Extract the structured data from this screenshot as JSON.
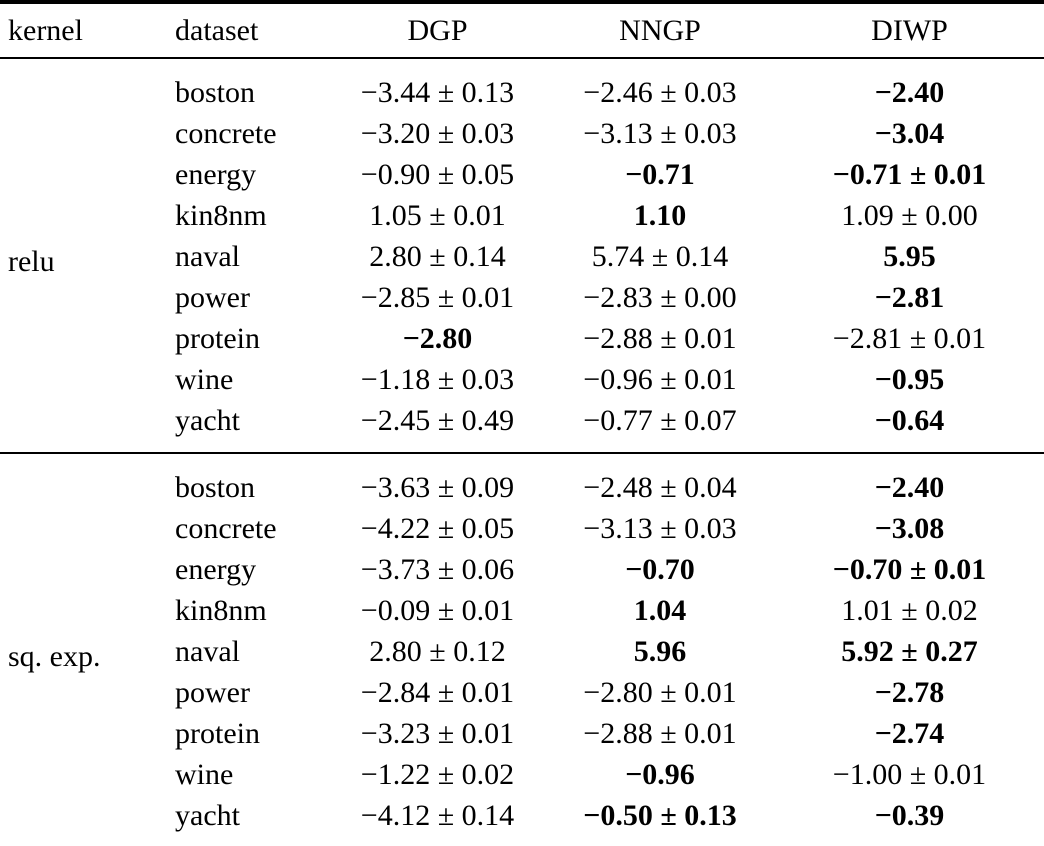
{
  "meta": {
    "background_color": "#ffffff",
    "text_color": "#000000",
    "rule_color": "#000000"
  },
  "table": {
    "columns": [
      {
        "key": "kernel",
        "label": "kernel"
      },
      {
        "key": "dataset",
        "label": "dataset"
      },
      {
        "key": "dgp",
        "label": "DGP"
      },
      {
        "key": "nngp",
        "label": "NNGP"
      },
      {
        "key": "diwp",
        "label": "DIWP"
      }
    ],
    "groups": [
      {
        "kernel": "relu",
        "rows": [
          {
            "dataset": "boston",
            "values": [
              {
                "text": "−3.44 ± 0.13",
                "bold": false
              },
              {
                "text": "−2.46 ± 0.03",
                "bold": false
              },
              {
                "text": "−2.40",
                "bold": true
              }
            ]
          },
          {
            "dataset": "concrete",
            "values": [
              {
                "text": "−3.20 ± 0.03",
                "bold": false
              },
              {
                "text": "−3.13 ± 0.03",
                "bold": false
              },
              {
                "text": "−3.04",
                "bold": true
              }
            ]
          },
          {
            "dataset": "energy",
            "values": [
              {
                "text": "−0.90 ± 0.05",
                "bold": false
              },
              {
                "text": "−0.71",
                "bold": true
              },
              {
                "text": "−0.71 ± 0.01",
                "bold": true
              }
            ]
          },
          {
            "dataset": "kin8nm",
            "values": [
              {
                "text": "1.05 ± 0.01",
                "bold": false
              },
              {
                "text": "1.10",
                "bold": true
              },
              {
                "text": "1.09 ± 0.00",
                "bold": false
              }
            ]
          },
          {
            "dataset": "naval",
            "values": [
              {
                "text": "2.80 ± 0.14",
                "bold": false
              },
              {
                "text": "5.74 ± 0.14",
                "bold": false
              },
              {
                "text": "5.95",
                "bold": true
              }
            ]
          },
          {
            "dataset": "power",
            "values": [
              {
                "text": "−2.85 ± 0.01",
                "bold": false
              },
              {
                "text": "−2.83 ± 0.00",
                "bold": false
              },
              {
                "text": "−2.81",
                "bold": true
              }
            ]
          },
          {
            "dataset": "protein",
            "values": [
              {
                "text": "−2.80",
                "bold": true
              },
              {
                "text": "−2.88 ± 0.01",
                "bold": false
              },
              {
                "text": "−2.81 ± 0.01",
                "bold": false
              }
            ]
          },
          {
            "dataset": "wine",
            "values": [
              {
                "text": "−1.18 ± 0.03",
                "bold": false
              },
              {
                "text": "−0.96 ± 0.01",
                "bold": false
              },
              {
                "text": "−0.95",
                "bold": true
              }
            ]
          },
          {
            "dataset": "yacht",
            "values": [
              {
                "text": "−2.45 ± 0.49",
                "bold": false
              },
              {
                "text": "−0.77 ± 0.07",
                "bold": false
              },
              {
                "text": "−0.64",
                "bold": true
              }
            ]
          }
        ]
      },
      {
        "kernel": "sq. exp.",
        "rows": [
          {
            "dataset": "boston",
            "values": [
              {
                "text": "−3.63 ± 0.09",
                "bold": false
              },
              {
                "text": "−2.48 ± 0.04",
                "bold": false
              },
              {
                "text": "−2.40",
                "bold": true
              }
            ]
          },
          {
            "dataset": "concrete",
            "values": [
              {
                "text": "−4.22 ± 0.05",
                "bold": false
              },
              {
                "text": "−3.13 ± 0.03",
                "bold": false
              },
              {
                "text": "−3.08",
                "bold": true
              }
            ]
          },
          {
            "dataset": "energy",
            "values": [
              {
                "text": "−3.73 ± 0.06",
                "bold": false
              },
              {
                "text": "−0.70",
                "bold": true
              },
              {
                "text": "−0.70 ± 0.01",
                "bold": true
              }
            ]
          },
          {
            "dataset": "kin8nm",
            "values": [
              {
                "text": "−0.09 ± 0.01",
                "bold": false
              },
              {
                "text": "1.04",
                "bold": true
              },
              {
                "text": "1.01 ± 0.02",
                "bold": false
              }
            ]
          },
          {
            "dataset": "naval",
            "values": [
              {
                "text": "2.80 ± 0.12",
                "bold": false
              },
              {
                "text": "5.96",
                "bold": true
              },
              {
                "text": "5.92 ± 0.27",
                "bold": true
              }
            ]
          },
          {
            "dataset": "power",
            "values": [
              {
                "text": "−2.84 ± 0.01",
                "bold": false
              },
              {
                "text": "−2.80 ± 0.01",
                "bold": false
              },
              {
                "text": "−2.78",
                "bold": true
              }
            ]
          },
          {
            "dataset": "protein",
            "values": [
              {
                "text": "−3.23 ± 0.01",
                "bold": false
              },
              {
                "text": "−2.88 ± 0.01",
                "bold": false
              },
              {
                "text": "−2.74",
                "bold": true
              }
            ]
          },
          {
            "dataset": "wine",
            "values": [
              {
                "text": "−1.22 ± 0.02",
                "bold": false
              },
              {
                "text": "−0.96",
                "bold": true
              },
              {
                "text": "−1.00 ± 0.01",
                "bold": false
              }
            ]
          },
          {
            "dataset": "yacht",
            "values": [
              {
                "text": "−4.12 ± 0.14",
                "bold": false
              },
              {
                "text": "−0.50 ± 0.13",
                "bold": true
              },
              {
                "text": "−0.39",
                "bold": true
              }
            ]
          }
        ]
      }
    ]
  }
}
